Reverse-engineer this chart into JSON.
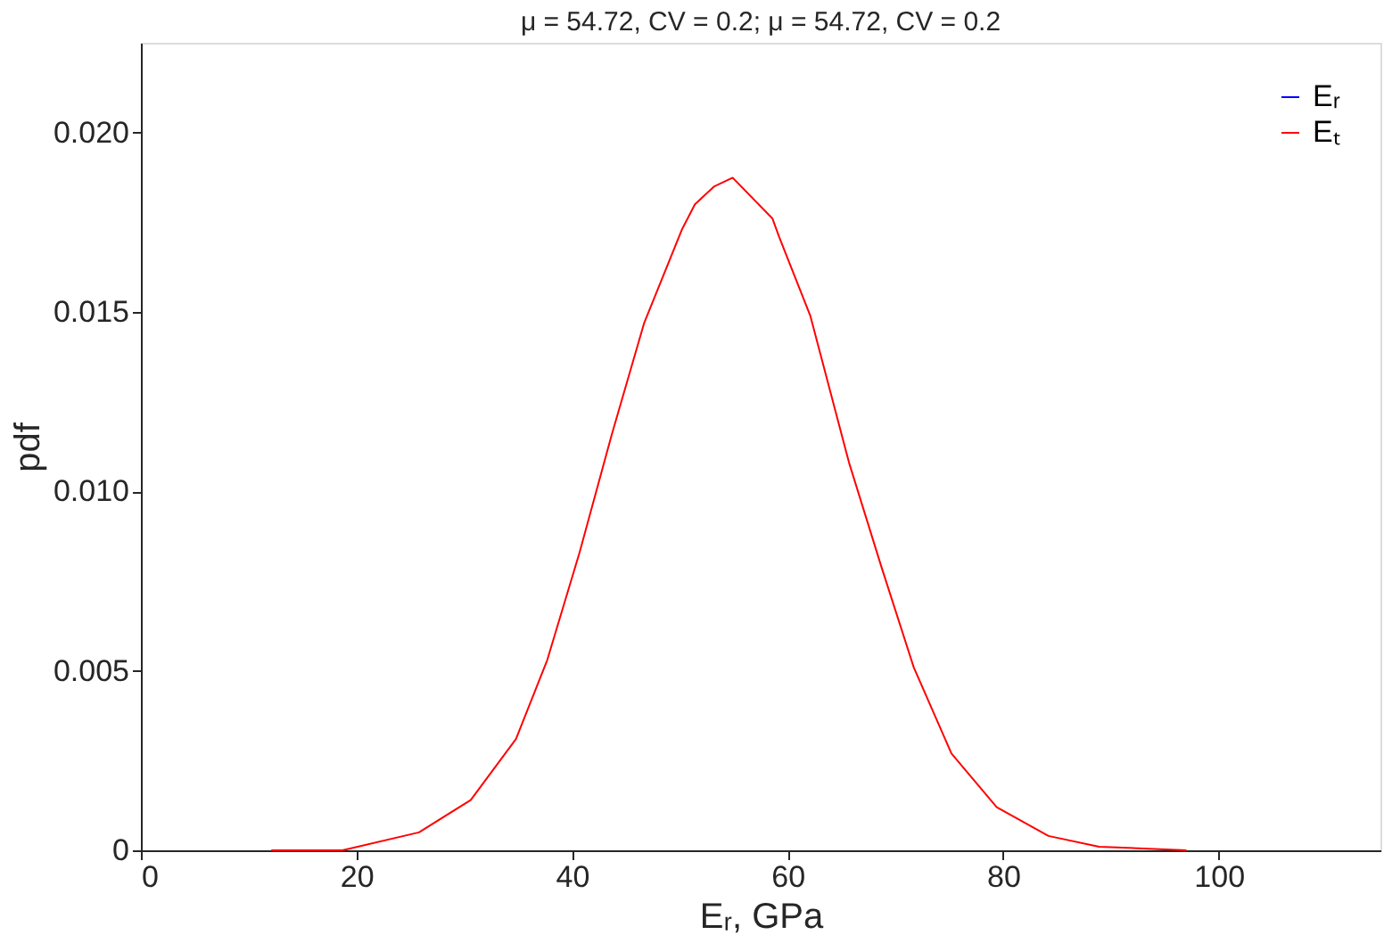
{
  "chart_data": {
    "type": "line",
    "title": "μ = 54.72, CV = 0.2; μ = 54.72, CV = 0.2",
    "xlabel": "Eᵣ, GPa",
    "ylabel": "pdf",
    "x": [
      12.1,
      18.7,
      25.8,
      30.6,
      34.8,
      37.7,
      40.7,
      43.7,
      46.7,
      50.2,
      51.4,
      53.2,
      54.9,
      58.6,
      59.2,
      62.1,
      65.7,
      68.7,
      71.7,
      75.2,
      79.4,
      84.2,
      88.9,
      97.0
    ],
    "series": [
      {
        "name": "Eᵣ",
        "color": "#0000ff",
        "values": [
          null,
          null,
          null,
          null,
          null,
          null,
          null,
          null,
          null,
          null,
          null,
          null,
          null,
          null,
          null,
          null,
          null,
          null,
          null,
          null,
          null,
          null,
          null,
          null
        ]
      },
      {
        "name": "Eₜ",
        "color": "#ff0000",
        "values": [
          0.0,
          0.0,
          0.0005,
          0.0014,
          0.0031,
          0.0053,
          0.0083,
          0.0116,
          0.0147,
          0.0173,
          0.018,
          0.0185,
          0.01874,
          0.0176,
          0.0171,
          0.0149,
          0.0108,
          0.0079,
          0.0051,
          0.0027,
          0.0012,
          0.0004,
          0.0001,
          0.0
        ]
      }
    ],
    "xlim": [
      0,
      115
    ],
    "xticks": [
      0,
      20,
      40,
      60,
      80,
      100
    ],
    "ylim": [
      0,
      0.0225
    ],
    "yticks": [
      0,
      0.005,
      {
        "value": 0.01,
        "label": "0.010"
      },
      0.015,
      {
        "value": 0.02,
        "label": "0.020"
      }
    ],
    "grid": false,
    "legend": "top right",
    "line_style": "solid",
    "marker": "none"
  }
}
